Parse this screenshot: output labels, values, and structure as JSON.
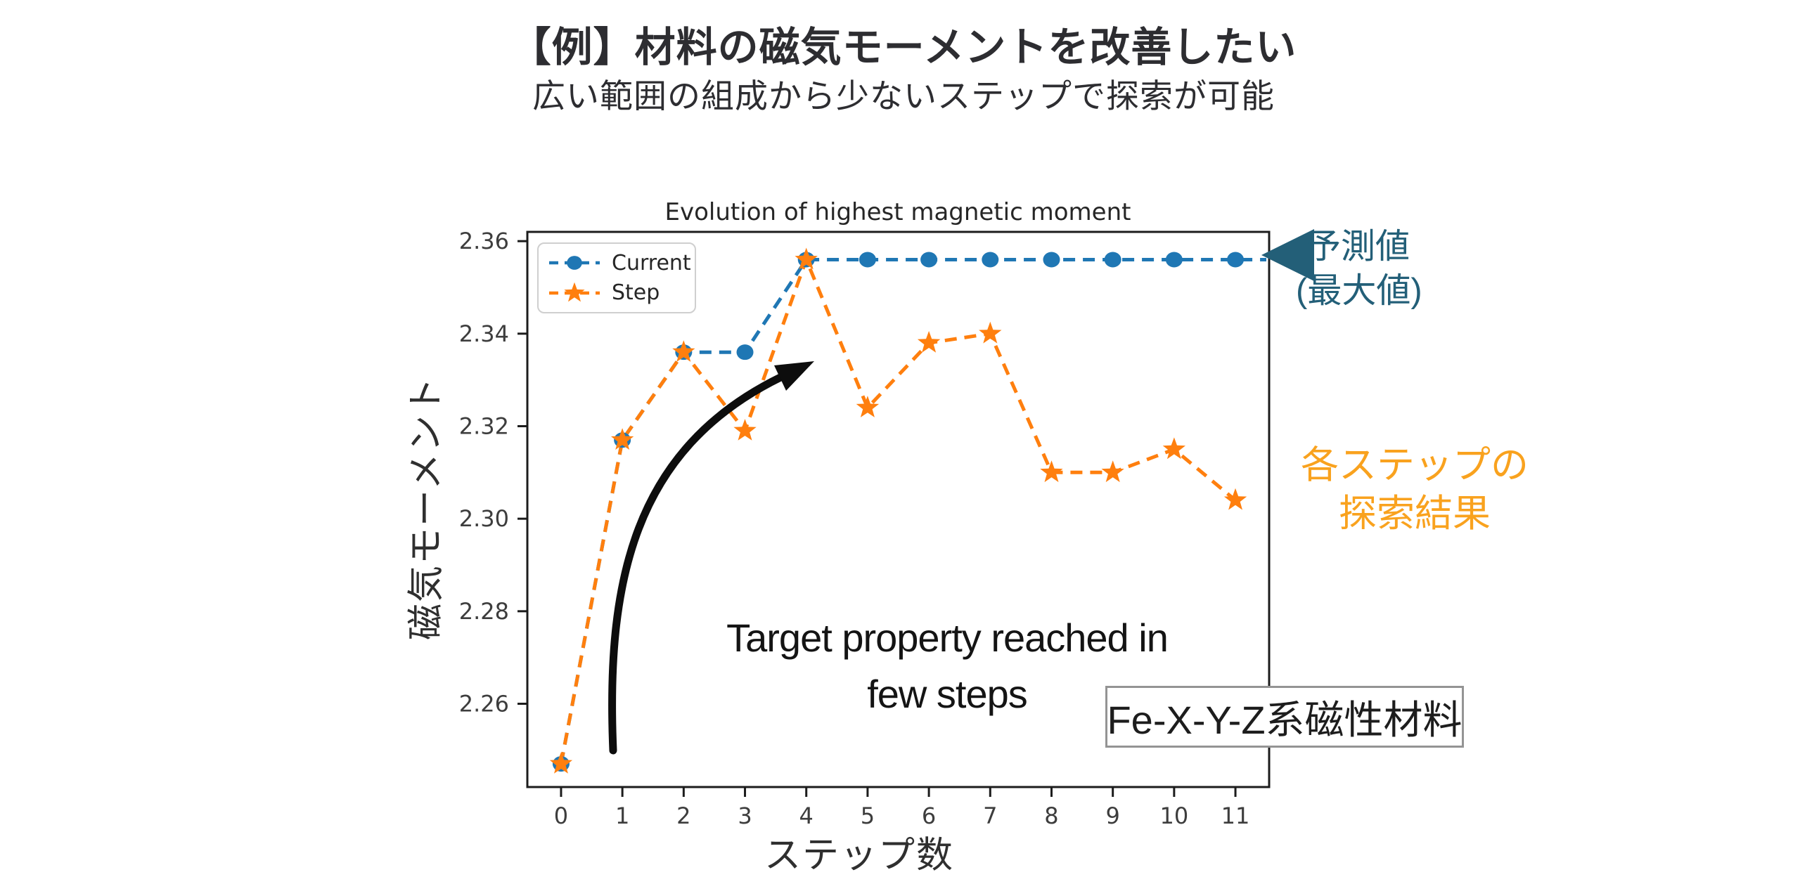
{
  "header": {
    "title": "【例】材料の磁気モーメントを改善したい",
    "subtitle": "広い範囲の組成から少ないステップで探索が可能"
  },
  "chart_data": {
    "type": "line",
    "title": "Evolution of highest magnetic moment",
    "xlabel": "ステップ数",
    "ylabel": "磁気モーメント",
    "x": [
      0,
      1,
      2,
      3,
      4,
      5,
      6,
      7,
      8,
      9,
      10,
      11
    ],
    "xlim": [
      -0.55,
      11.55
    ],
    "ylim": [
      2.242,
      2.362
    ],
    "x_ticks": [
      0,
      1,
      2,
      3,
      4,
      5,
      6,
      7,
      8,
      9,
      10,
      11
    ],
    "y_ticks": [
      2.36,
      2.34,
      2.32,
      2.3,
      2.28,
      2.26
    ],
    "grid": false,
    "legend_position": "upper-left",
    "line_style": "dashed",
    "series": [
      {
        "name": "Current",
        "marker": "circle",
        "color": "#1f77b4",
        "values": [
          2.247,
          2.317,
          2.336,
          2.336,
          2.356,
          2.356,
          2.356,
          2.356,
          2.356,
          2.356,
          2.356,
          2.356
        ]
      },
      {
        "name": "Step",
        "marker": "star",
        "color": "#ff7f0e",
        "values": [
          2.247,
          2.317,
          2.336,
          2.319,
          2.356,
          2.324,
          2.338,
          2.34,
          2.31,
          2.31,
          2.315,
          2.304
        ]
      }
    ]
  },
  "annotations": {
    "prediction_line1": "予測値",
    "prediction_line2": "(最大値)",
    "prediction_color": "#235f78",
    "step_results_line1": "各ステップの",
    "step_results_line2": "探索結果",
    "step_results_color": "#f9a21e",
    "target_line1": "Target property reached in",
    "target_line2": "few steps",
    "material_label": "Fe-X-Y-Z系磁性材料"
  }
}
